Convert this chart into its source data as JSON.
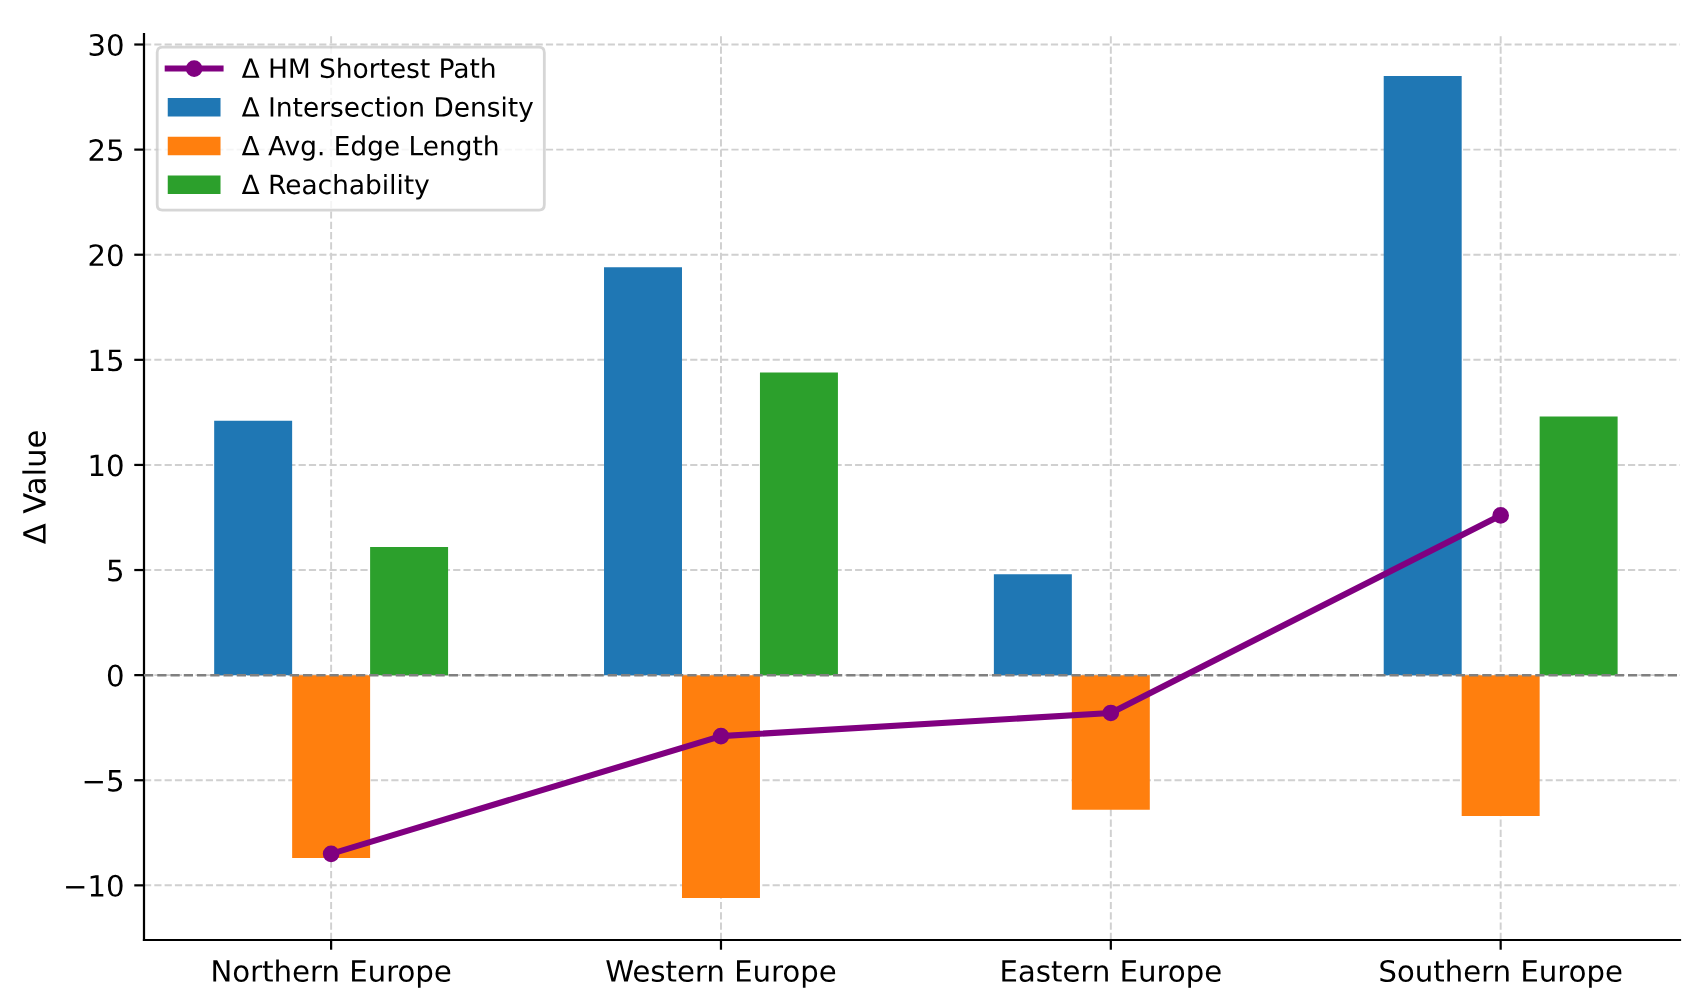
{
  "chart_data": {
    "type": "bar",
    "ylabel": "Δ Value",
    "categories": [
      "Northern Europe",
      "Western Europe",
      "Eastern Europe",
      "Southern Europe"
    ],
    "series": [
      {
        "name": "Δ HM Shortest Path",
        "type": "line",
        "color": "#800080",
        "marker": "circle",
        "values": [
          -8.5,
          -2.9,
          -1.8,
          7.6
        ]
      },
      {
        "name": "Δ Intersection Density",
        "color": "#1f77b4",
        "values": [
          12.1,
          19.4,
          4.8,
          28.5
        ]
      },
      {
        "name": "Δ Avg. Edge Length",
        "color": "#ff7f0e",
        "values": [
          -8.7,
          -10.6,
          -6.4,
          -6.7
        ]
      },
      {
        "name": "Δ Reachability",
        "color": "#2ca02c",
        "values": [
          6.1,
          14.4,
          null,
          12.3
        ]
      }
    ],
    "ylim": [
      -12.6,
      30.5
    ],
    "yticks": [
      {
        "value": -10,
        "label": "−10"
      },
      {
        "value": -5,
        "label": "−5"
      },
      0,
      5,
      10,
      15,
      20,
      25,
      30
    ],
    "ref_lines": [
      {
        "axis": "y",
        "value": 0,
        "color": "#808080",
        "line_style": "dashed"
      }
    ],
    "grid": true,
    "legend": "top left"
  }
}
